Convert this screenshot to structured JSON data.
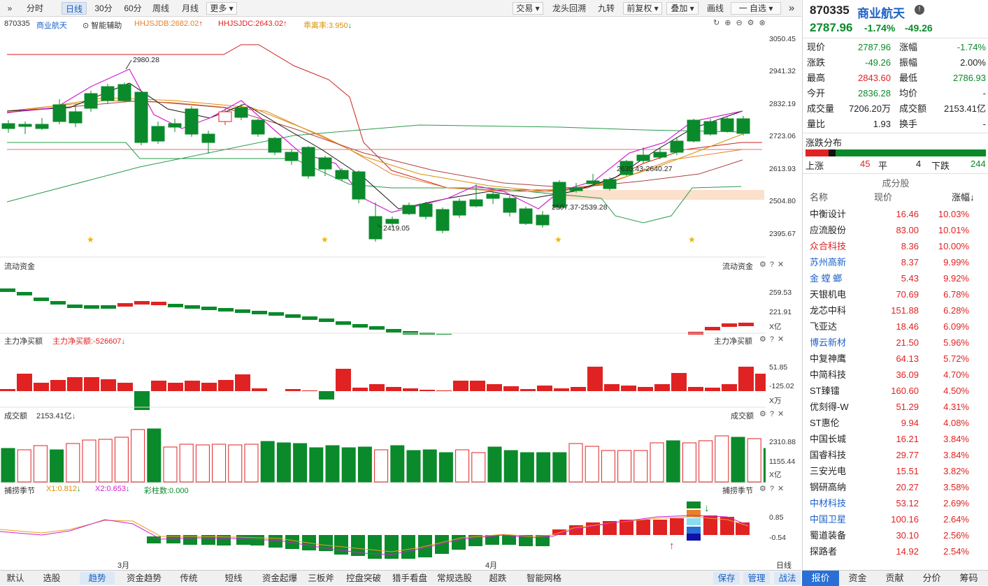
{
  "toolbar": {
    "left": [
      "分时",
      "日线",
      "30分",
      "60分",
      "周线",
      "月线",
      "更多"
    ],
    "right": [
      "交易",
      "龙头回溯",
      "九转",
      "前复权",
      "叠加",
      "画线",
      "一 自选"
    ]
  },
  "indicator_header": {
    "code": "870335",
    "name": "商业航天",
    "assist": "智能辅助",
    "hhjsjdb": "HHJSJDB:2682.02",
    "hhjsjdc": "HHJSJDC:2643.02",
    "ratio": "乖离率:3.950"
  },
  "main_axis": [
    "3050.45",
    "2941.32",
    "2832.19",
    "2723.06",
    "2613.93",
    "2504.80",
    "2395.67"
  ],
  "annotations": {
    "high": "2980.28",
    "low": "2419.05",
    "zone1": "2507.37-2539.28",
    "zone2": "2635.43-2640.27"
  },
  "panels": {
    "flow": {
      "title": "流动资金",
      "axis": [
        "259.53",
        "221.91"
      ],
      "unit": "X亿"
    },
    "net": {
      "title": "主力净买额",
      "value": "主力净买额:-526607",
      "axis": [
        "51.85",
        "-125.02"
      ],
      "unit": "X万"
    },
    "vol": {
      "title": "成交额",
      "value": "2153.41亿",
      "axis": [
        "2310.88",
        "1155.44"
      ],
      "unit": "X亿"
    },
    "season": {
      "title": "捕捞季节",
      "x1": "X1:0.812",
      "x2": "X2:0.653",
      "bars": "彩柱数:0.000",
      "axis": [
        "0.85",
        "-0.54"
      ]
    }
  },
  "dates": [
    "3月",
    "4月"
  ],
  "period_label": "日线",
  "bottom_tabs": [
    "默认",
    "选股",
    "趋势",
    "资金趋势",
    "传统",
    "短线",
    "资金起爆",
    "三板斧",
    "控盘突破",
    "猎手看盘",
    "常规选股",
    "超跌",
    "智能网格"
  ],
  "bottom_right": [
    "保存",
    "管理",
    "战法"
  ],
  "quote": {
    "code": "870335",
    "name": "商业航天",
    "price": "2787.96",
    "pct": "-1.74%",
    "chg": "-49.26",
    "rows": [
      [
        "现价",
        "2787.96",
        "涨幅",
        "-1.74%"
      ],
      [
        "涨跌",
        "-49.26",
        "振幅",
        "2.00%"
      ],
      [
        "最高",
        "2843.60",
        "最低",
        "2786.93"
      ],
      [
        "今开",
        "2836.28",
        "均价",
        "-"
      ],
      [
        "成交量",
        "7206.20万",
        "成交额",
        "2153.41亿"
      ],
      [
        "量比",
        "1.93",
        "换手",
        "-"
      ]
    ],
    "dist_title": "涨跌分布",
    "up_label": "上涨",
    "up": "45",
    "flat_label": "平",
    "flat": "4",
    "down_label": "下跌",
    "down": "244",
    "comp_title": "成分股",
    "comp_head": [
      "名称",
      "现价",
      "涨幅↓"
    ],
    "stocks": [
      [
        "中衡设计",
        "16.46",
        "10.03%"
      ],
      [
        "应流股份",
        "83.00",
        "10.01%"
      ],
      [
        "众合科技",
        "8.36",
        "10.00%"
      ],
      [
        "苏州高新",
        "8.37",
        "9.99%"
      ],
      [
        "金 螳 螂",
        "5.43",
        "9.92%"
      ],
      [
        "天银机电",
        "70.69",
        "6.78%"
      ],
      [
        "龙芯中科",
        "151.88",
        "6.28%"
      ],
      [
        "飞亚达",
        "18.46",
        "6.09%"
      ],
      [
        "博云新材",
        "21.50",
        "5.96%"
      ],
      [
        "中复神鹰",
        "64.13",
        "5.72%"
      ],
      [
        "中简科技",
        "36.09",
        "4.70%"
      ],
      [
        "ST臻镭",
        "160.60",
        "4.50%"
      ],
      [
        "优刻得-W",
        "51.29",
        "4.31%"
      ],
      [
        "ST惠伦",
        "9.94",
        "4.08%"
      ],
      [
        "中国长城",
        "16.21",
        "3.84%"
      ],
      [
        "国睿科技",
        "29.77",
        "3.84%"
      ],
      [
        "三安光电",
        "15.51",
        "3.82%"
      ],
      [
        "钢研高纳",
        "20.27",
        "3.58%"
      ],
      [
        "中材科技",
        "53.12",
        "2.69%"
      ],
      [
        "中国卫星",
        "100.16",
        "2.64%"
      ],
      [
        "蜀道装备",
        "30.10",
        "2.56%"
      ],
      [
        "探路者",
        "14.92",
        "2.54%"
      ]
    ],
    "tabs": [
      "报价",
      "资金",
      "贡献",
      "分价",
      "筹码"
    ]
  },
  "colors": {
    "up": "#e12222",
    "down": "#0a8a2a",
    "blue": "#1e62c8"
  }
}
